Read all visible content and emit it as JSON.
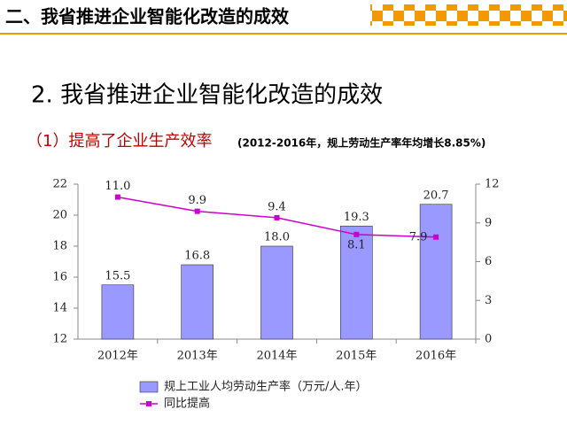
{
  "header": {
    "title": "二、我省推进企业智能化改造的成效"
  },
  "slide": {
    "title": "2. 我省推进企业智能化改造的成效",
    "subtitle": "（1）提高了企业生产效率",
    "note": "(2012-2016年，规上劳动生产率年均增长8.85%)"
  },
  "chart_data": {
    "type": "bar",
    "categories": [
      "2012年",
      "2013年",
      "2014年",
      "2015年",
      "2016年"
    ],
    "series": [
      {
        "name": "规上工业人均劳动生产率（万元/人.年）",
        "type": "bar",
        "color": "#9999ff",
        "values": [
          15.5,
          16.8,
          18,
          19.3,
          20.7
        ],
        "value_labels": [
          "15.5",
          "16.8",
          "18.0",
          "19.3",
          "20.7"
        ]
      },
      {
        "name": "同比提高",
        "type": "line",
        "axis": "y2",
        "color": "#cc00cc",
        "values": [
          11,
          9.9,
          9.4,
          8.1,
          7.9
        ],
        "value_labels": [
          "11.0",
          "9.9",
          "9.4",
          "8.1",
          "7.9"
        ]
      }
    ],
    "ylim": [
      12,
      22
    ],
    "yticks": [
      12,
      14,
      16,
      18,
      20,
      22
    ],
    "y2lim": [
      0,
      12
    ],
    "y2ticks": [
      0,
      3,
      6,
      9,
      12
    ],
    "legend": "bottom"
  }
}
